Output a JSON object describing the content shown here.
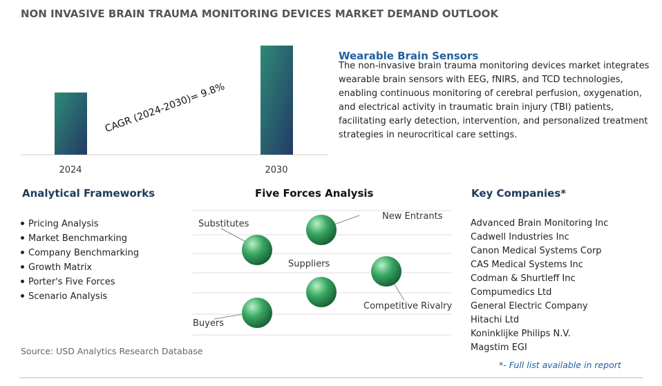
{
  "header": {
    "title": "NON INVASIVE BRAIN TRAUMA MONITORING DEVICES MARKET DEMAND OUTLOOK"
  },
  "growth": {
    "categories": [
      "2024",
      "2030"
    ],
    "cagr": "CAGR (2024-2030)=  9.8%"
  },
  "highlight": {
    "title": "Wearable Brain Sensors",
    "text": "The non-invasive brain trauma monitoring devices market integrates wearable brain sensors with EEG, fNIRS, and TCD technologies, enabling continuous monitoring of cerebral perfusion, oxygenation, and electrical activity in traumatic brain injury (TBI) patients, facilitating early detection, intervention, and personalized treatment strategies in neurocritical care settings."
  },
  "frameworks": {
    "title": "Analytical Frameworks",
    "items": [
      "Pricing Analysis",
      "Market Benchmarking",
      "Company Benchmarking",
      "Growth Matrix",
      "Porter's Five Forces",
      "Scenario Analysis"
    ]
  },
  "five_forces": {
    "title": "Five Forces Analysis",
    "labels": [
      "Substitutes",
      "New Entrants",
      "Suppliers",
      "Competitive Rivalry",
      "Buyers"
    ]
  },
  "companies": {
    "title": "Key Companies*",
    "items": [
      "Advanced Brain Monitoring Inc",
      "Cadwell Industries Inc",
      "Canon Medical Systems Corp",
      "CAS Medical Systems Inc",
      "Codman & Shurtleff Inc",
      "Compumedics Ltd",
      "General Electric Company",
      "Hitachi Ltd",
      "Koninklijke Philips N.V.",
      "Magstim EGI"
    ],
    "note": "*- Full list available in report"
  },
  "footer": {
    "source": "Source: USD Analytics Research Database"
  }
}
